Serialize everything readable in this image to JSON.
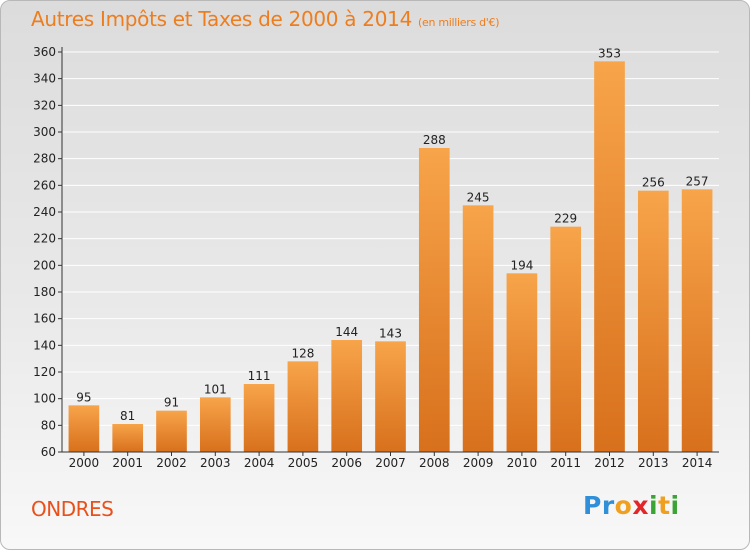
{
  "header": {
    "title": "Autres Impôts et Taxes de 2000 à 2014",
    "subtitle": "(en milliers d'€)"
  },
  "footer": {
    "town": "ONDRES",
    "logo_letters": [
      {
        "char": "P",
        "color": "#2f8fd8"
      },
      {
        "char": "r",
        "color": "#2f8fd8"
      },
      {
        "char": "o",
        "color": "#f0a020"
      },
      {
        "char": "x",
        "color": "#e2262a"
      },
      {
        "char": "i",
        "color": "#3aa535"
      },
      {
        "char": "t",
        "color": "#f0a020"
      },
      {
        "char": "i",
        "color": "#3aa535"
      }
    ]
  },
  "colors": {
    "bar_light": "#f7a44a",
    "bar_dark": "#d8701c",
    "grid": "#ffffff",
    "axis": "#333333"
  },
  "chart_data": {
    "type": "bar",
    "title": "Autres Impôts et Taxes de 2000 à 2014",
    "subtitle": "(en milliers d'€)",
    "xlabel": "",
    "ylabel": "",
    "categories": [
      "2000",
      "2001",
      "2002",
      "2003",
      "2004",
      "2005",
      "2006",
      "2007",
      "2008",
      "2009",
      "2010",
      "2011",
      "2012",
      "2013",
      "2014"
    ],
    "values": [
      95,
      81,
      91,
      101,
      111,
      128,
      144,
      143,
      288,
      245,
      194,
      229,
      353,
      256,
      257
    ],
    "ylim": [
      60,
      360
    ],
    "yticks": [
      60,
      80,
      100,
      120,
      140,
      160,
      180,
      200,
      220,
      240,
      260,
      280,
      300,
      320,
      340,
      360
    ],
    "grid": true,
    "legend": "none"
  }
}
